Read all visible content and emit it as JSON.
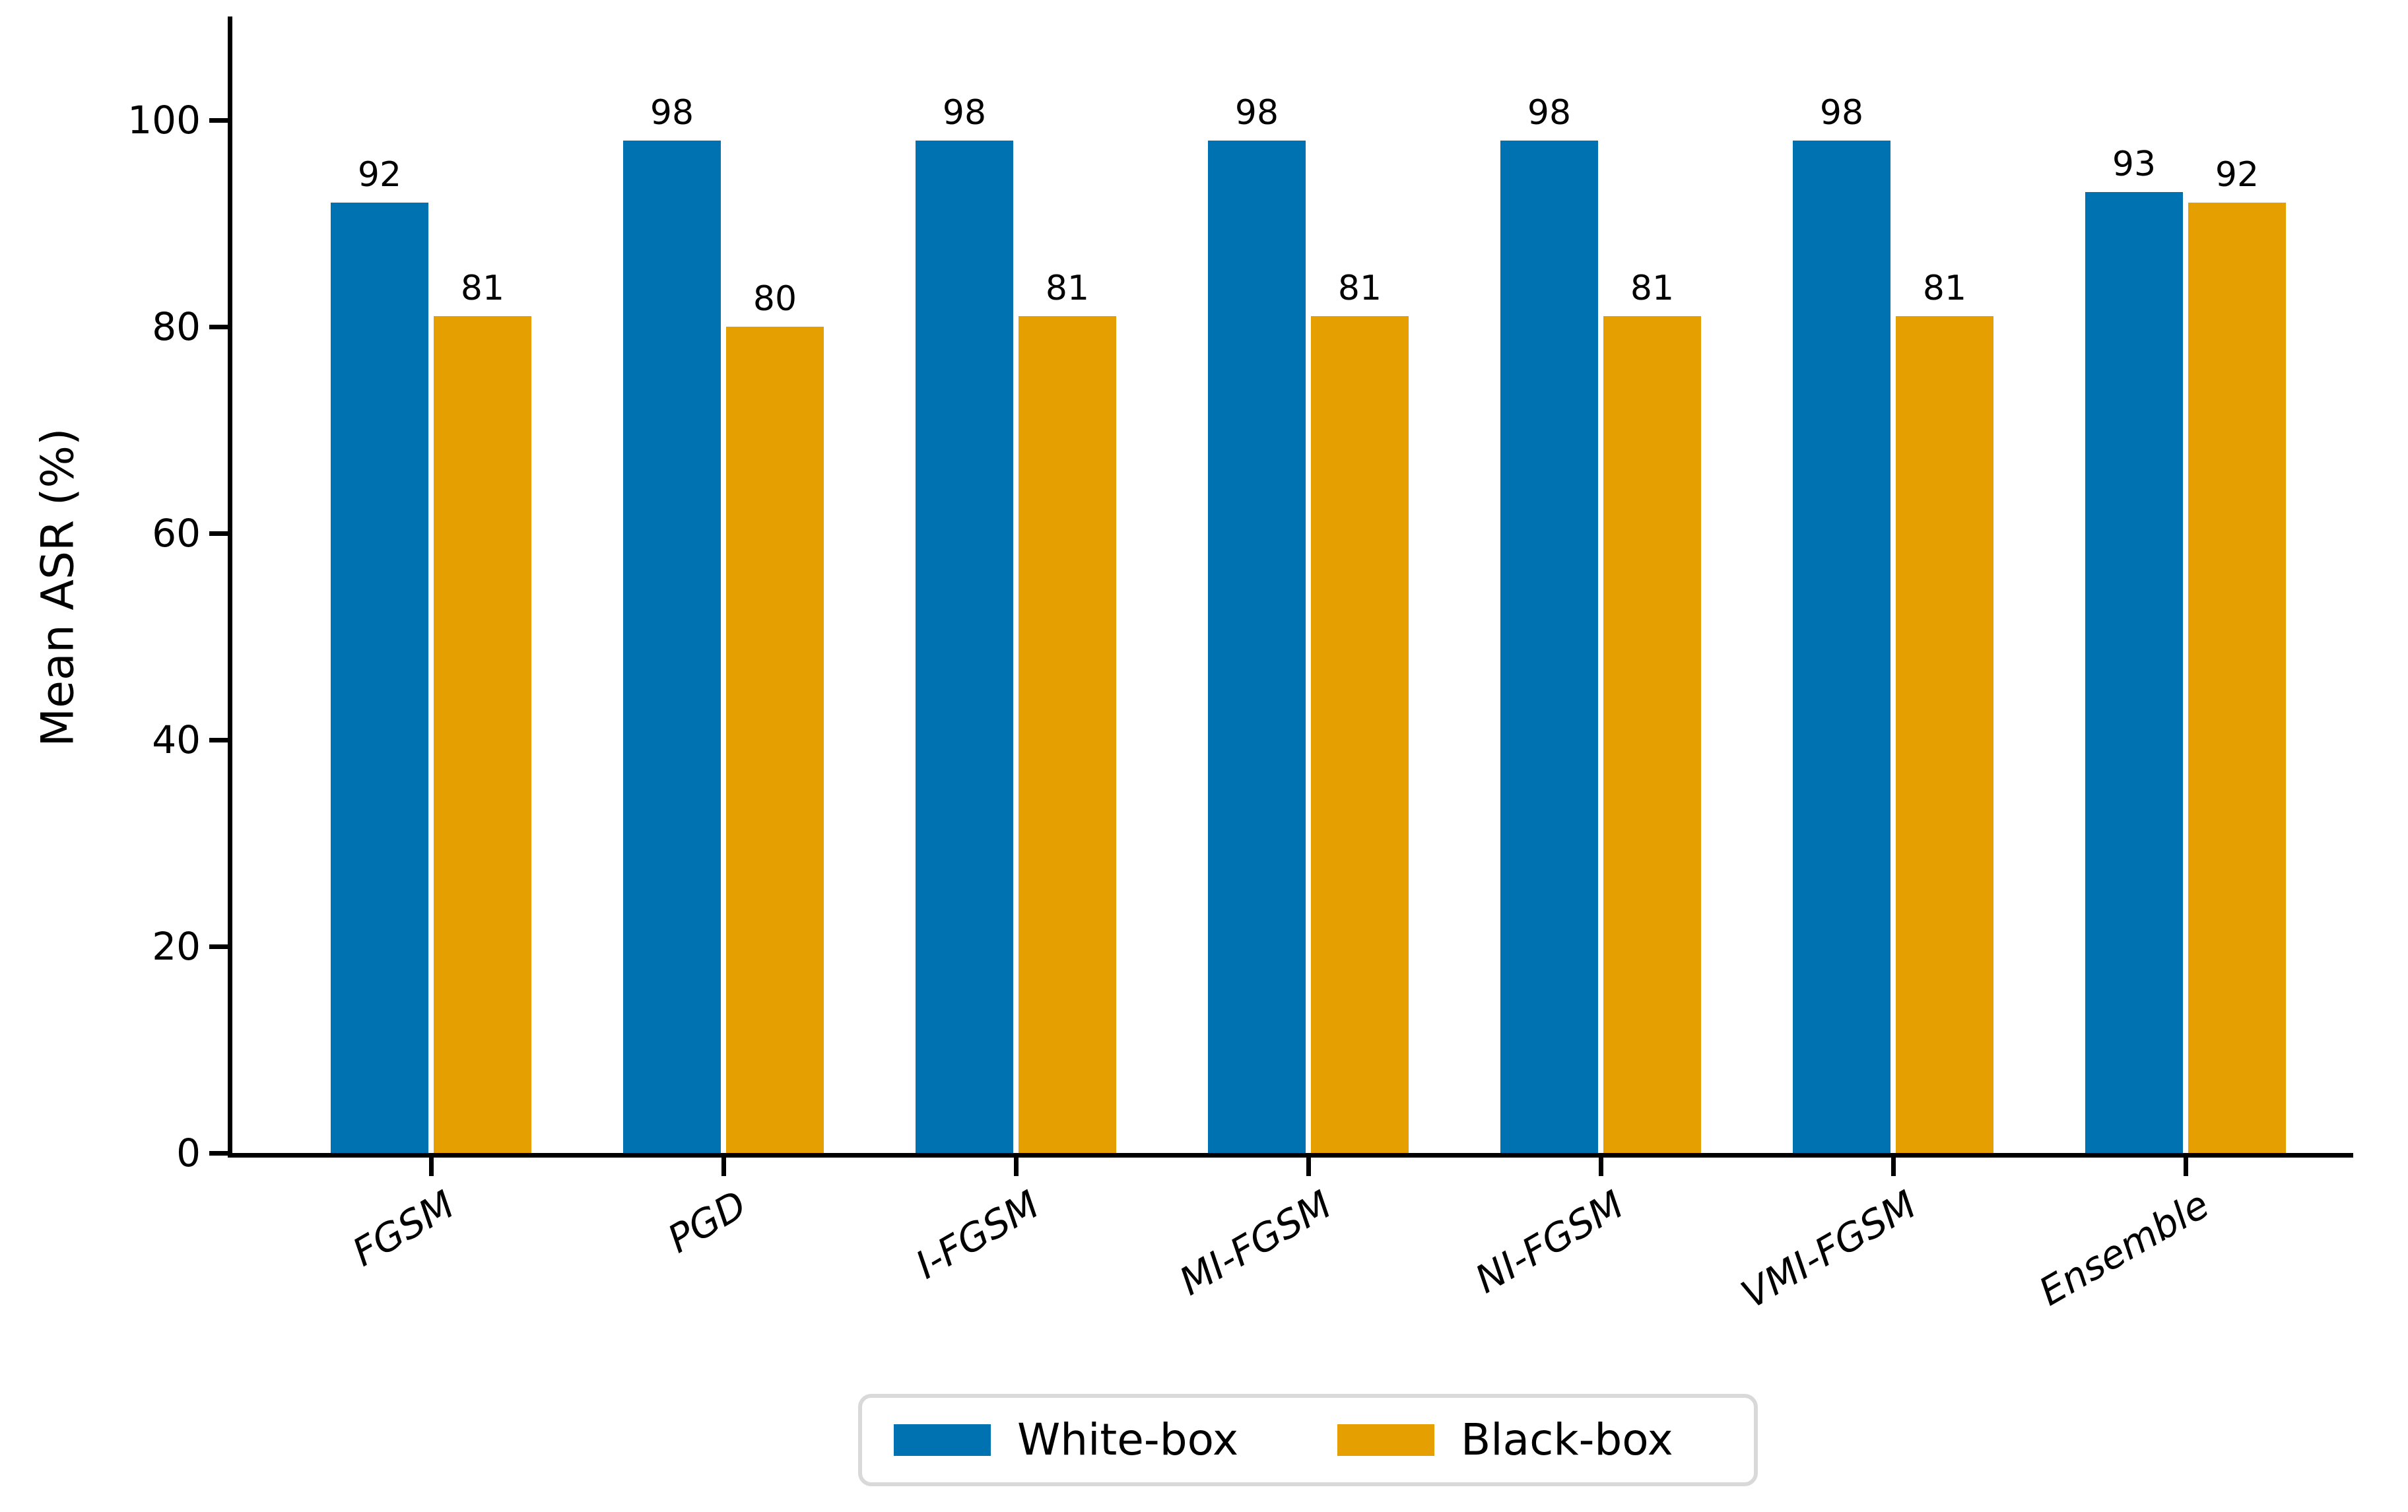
{
  "chart_data": {
    "type": "bar",
    "title": "",
    "xlabel": "",
    "ylabel": "Mean ASR (%)",
    "categories": [
      "FGSM",
      "PGD",
      "I-FGSM",
      "MI-FGSM",
      "NI-FGSM",
      "VMI-FGSM",
      "Ensemble"
    ],
    "series": [
      {
        "name": "White-box",
        "color": "#0072B2",
        "values": [
          92,
          98,
          98,
          98,
          98,
          98,
          93
        ]
      },
      {
        "name": "Black-box",
        "color": "#E69F00",
        "values": [
          81,
          80,
          81,
          81,
          81,
          81,
          92
        ]
      }
    ],
    "yticks": [
      0,
      20,
      40,
      60,
      80,
      100
    ],
    "ylim": [
      0,
      110
    ],
    "grid": false,
    "bar_value_labels": true,
    "legend_position": "bottom-center",
    "x_tick_label_style": "italic, rotated 30deg",
    "axis_color": "#000000",
    "text_color": "#000000",
    "background": "#ffffff"
  }
}
